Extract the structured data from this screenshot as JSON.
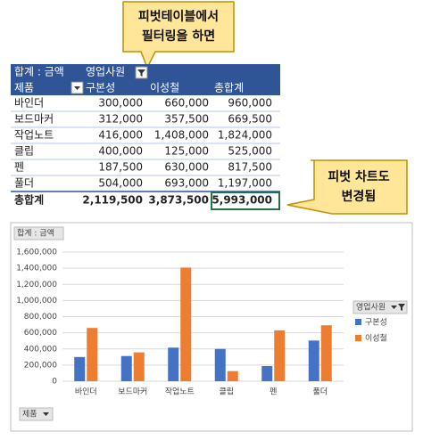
{
  "callouts": [
    {
      "lines": [
        "피벗테이블에서",
        "필터링을 하면"
      ]
    },
    {
      "lines": [
        "피벗 차트도",
        "변경됨"
      ]
    }
  ],
  "pivot_table": {
    "value_field": "합계 : 금액",
    "column_field": "영업사원",
    "row_field": "제품",
    "columns": [
      "구본성",
      "이성철",
      "총합계"
    ],
    "rows": [
      {
        "label": "바인더",
        "values": [
          "300,000",
          "660,000",
          "960,000"
        ]
      },
      {
        "label": "보드마커",
        "values": [
          "312,000",
          "357,500",
          "669,500"
        ]
      },
      {
        "label": "작업노트",
        "values": [
          "416,000",
          "1,408,000",
          "1,824,000"
        ]
      },
      {
        "label": "클립",
        "values": [
          "400,000",
          "125,000",
          "525,000"
        ]
      },
      {
        "label": "펜",
        "values": [
          "187,500",
          "630,000",
          "817,500"
        ]
      },
      {
        "label": "풀더",
        "values": [
          "504,000",
          "693,000",
          "1,197,000"
        ]
      }
    ],
    "total": {
      "label": "총합계",
      "values": [
        "2,119,500",
        "3,873,500",
        "5,993,000"
      ]
    }
  },
  "chart_data": {
    "type": "bar",
    "value_field_button": "합계 : 금액",
    "axis_field_button": "제품",
    "legend_title": "영업사원",
    "legend": "right",
    "grid": true,
    "categories": [
      "바인더",
      "보드마커",
      "작업노트",
      "클립",
      "펜",
      "풀더"
    ],
    "series": [
      {
        "name": "구본성",
        "color": "#4472c4",
        "values": [
          300000,
          312000,
          416000,
          400000,
          187500,
          504000
        ]
      },
      {
        "name": "이성철",
        "color": "#ed7d31",
        "values": [
          660000,
          357500,
          1408000,
          125000,
          630000,
          693000
        ]
      }
    ],
    "ylim": [
      0,
      1600000
    ],
    "yticks": [
      0,
      {
        "value": 200000,
        "label": "200,000"
      },
      {
        "value": 400000,
        "label": "400,000"
      },
      {
        "value": 600000,
        "label": "600,000"
      },
      {
        "value": 800000,
        "label": "800,000"
      },
      {
        "value": 1000000,
        "label": "1,000,000"
      },
      {
        "value": 1200000,
        "label": "1,200,000"
      },
      {
        "value": 1400000,
        "label": "1,400,000"
      },
      {
        "value": 1600000,
        "label": "1,600,000"
      }
    ]
  }
}
